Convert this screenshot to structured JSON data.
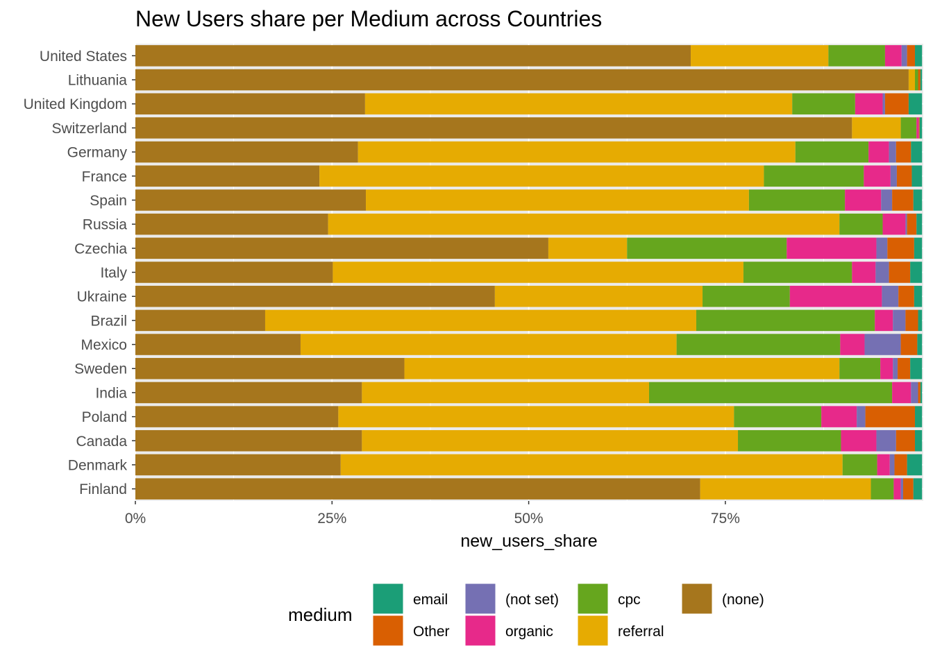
{
  "chart_data": {
    "type": "bar",
    "orientation": "horizontal",
    "stacked": true,
    "title": "New Users share per Medium across Countries",
    "xlabel": "new_users_share",
    "ylabel": "",
    "xlim": [
      0,
      1
    ],
    "x_ticks": [
      0,
      0.25,
      0.5,
      0.75
    ],
    "x_tick_labels": [
      "0%",
      "25%",
      "50%",
      "75%"
    ],
    "grid": true,
    "legend": {
      "title": "medium",
      "position": "bottom",
      "entries": [
        {
          "name": "email",
          "color": "#1b9e77"
        },
        {
          "name": "Other",
          "color": "#d95f02"
        },
        {
          "name": "(not set)",
          "color": "#7570b3"
        },
        {
          "name": "organic",
          "color": "#e7298a"
        },
        {
          "name": "cpc",
          "color": "#66a61e"
        },
        {
          "name": "referral",
          "color": "#e6ab02"
        },
        {
          "name": "(none)",
          "color": "#a6761d"
        }
      ]
    },
    "stack_order": [
      "(none)",
      "referral",
      "cpc",
      "organic",
      "(not set)",
      "Other",
      "email"
    ],
    "categories": [
      "United States",
      "Lithuania",
      "United Kingdom",
      "Switzerland",
      "Germany",
      "France",
      "Spain",
      "Russia",
      "Czechia",
      "Italy",
      "Ukraine",
      "Brazil",
      "Mexico",
      "Sweden",
      "India",
      "Poland",
      "Canada",
      "Denmark",
      "Finland"
    ],
    "series": [
      {
        "name": "(none)",
        "color": "#a6761d",
        "values": [
          0.706,
          0.983,
          0.292,
          0.911,
          0.283,
          0.234,
          0.293,
          0.245,
          0.525,
          0.251,
          0.457,
          0.165,
          0.21,
          0.342,
          0.288,
          0.258,
          0.288,
          0.261,
          0.718
        ]
      },
      {
        "name": "referral",
        "color": "#e6ab02",
        "values": [
          0.175,
          0.008,
          0.543,
          0.062,
          0.556,
          0.565,
          0.487,
          0.65,
          0.1,
          0.522,
          0.264,
          0.548,
          0.478,
          0.553,
          0.365,
          0.503,
          0.478,
          0.638,
          0.217
        ]
      },
      {
        "name": "cpc",
        "color": "#66a61e",
        "values": [
          0.072,
          0.004,
          0.08,
          0.02,
          0.093,
          0.127,
          0.122,
          0.055,
          0.203,
          0.138,
          0.111,
          0.227,
          0.208,
          0.052,
          0.309,
          0.111,
          0.131,
          0.044,
          0.029
        ]
      },
      {
        "name": "organic",
        "color": "#e7298a",
        "values": [
          0.021,
          0.0,
          0.035,
          0.003,
          0.026,
          0.034,
          0.046,
          0.029,
          0.114,
          0.03,
          0.117,
          0.023,
          0.031,
          0.016,
          0.024,
          0.045,
          0.045,
          0.016,
          0.009
        ]
      },
      {
        "name": "(not set)",
        "color": "#7570b3",
        "values": [
          0.007,
          0.0,
          0.003,
          0.0,
          0.009,
          0.008,
          0.014,
          0.002,
          0.014,
          0.017,
          0.021,
          0.016,
          0.046,
          0.006,
          0.009,
          0.011,
          0.025,
          0.006,
          0.003
        ]
      },
      {
        "name": "Other",
        "color": "#d95f02",
        "values": [
          0.01,
          0.003,
          0.03,
          0.001,
          0.019,
          0.019,
          0.027,
          0.012,
          0.034,
          0.027,
          0.02,
          0.016,
          0.021,
          0.016,
          0.003,
          0.063,
          0.024,
          0.016,
          0.013
        ]
      },
      {
        "name": "email",
        "color": "#1b9e77",
        "values": [
          0.009,
          0.002,
          0.017,
          0.003,
          0.014,
          0.013,
          0.011,
          0.007,
          0.01,
          0.015,
          0.01,
          0.005,
          0.006,
          0.015,
          0.002,
          0.009,
          0.009,
          0.019,
          0.011
        ]
      }
    ]
  }
}
